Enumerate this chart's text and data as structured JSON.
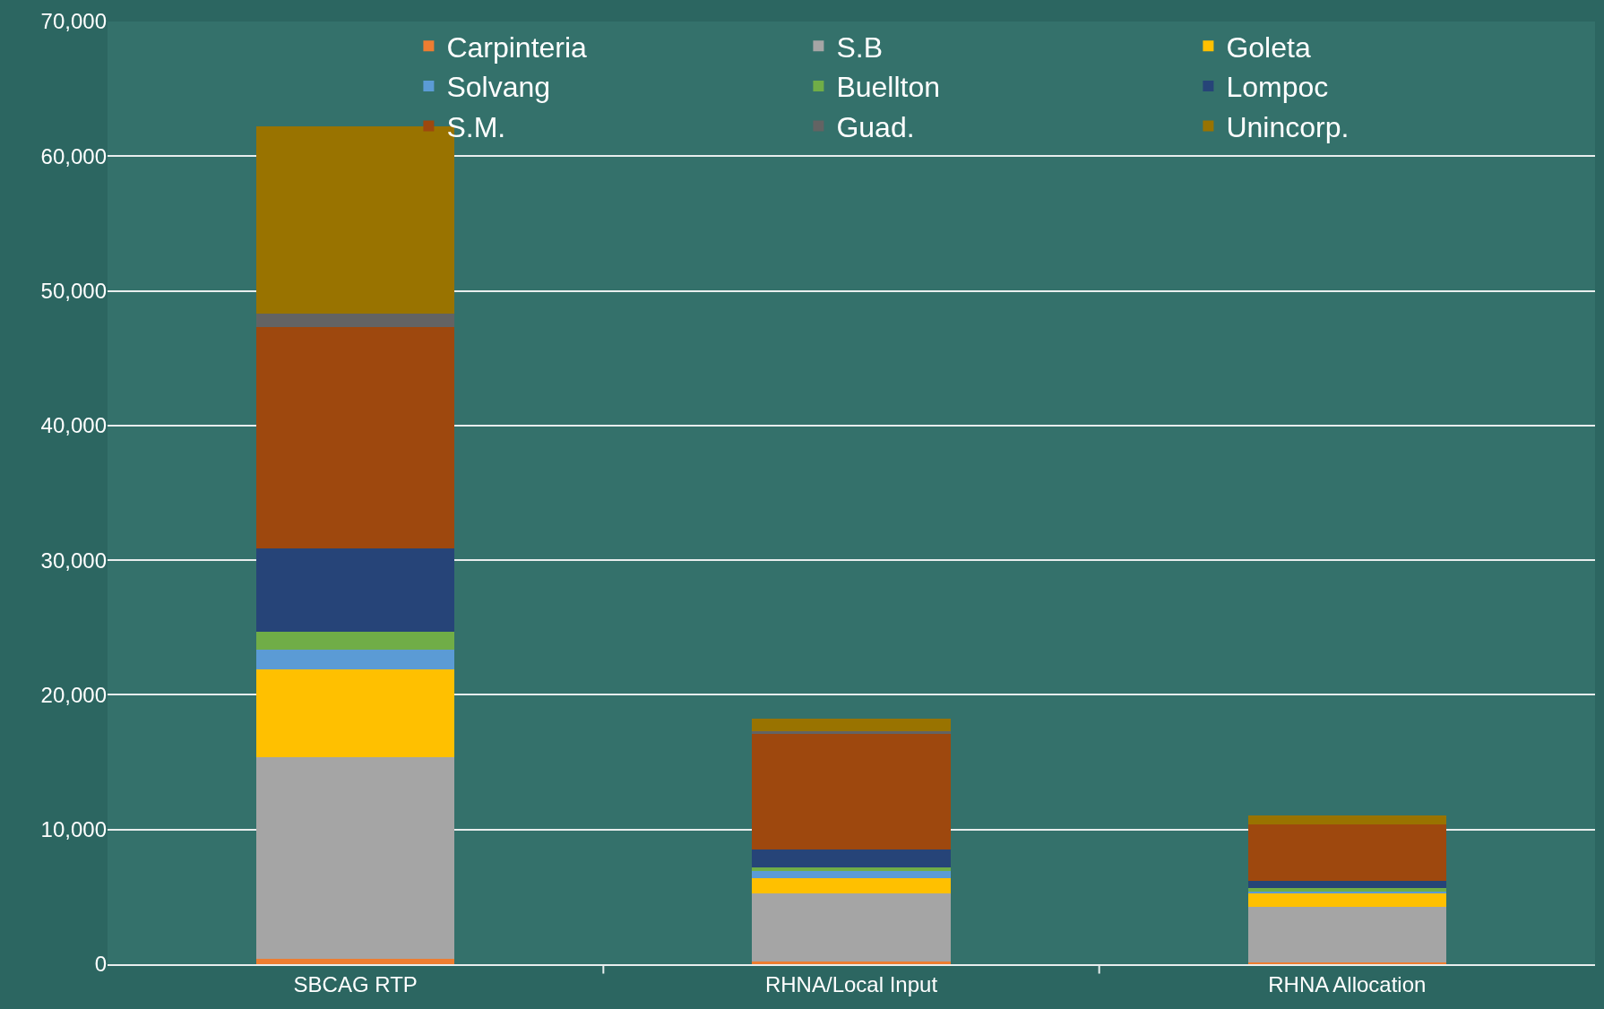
{
  "chart_data": {
    "type": "bar",
    "stacked": true,
    "categories": [
      "SBCAG RTP",
      "RHNA/Local Input",
      "RHNA Allocation"
    ],
    "series": [
      {
        "name": "Carpinteria",
        "color": "#ed7d31",
        "values": [
          400,
          180,
          160
        ]
      },
      {
        "name": "S.B",
        "color": "#a5a5a5",
        "values": [
          15000,
          5090,
          4120
        ]
      },
      {
        "name": "Goleta",
        "color": "#ffc000",
        "values": [
          6500,
          1150,
          980
        ]
      },
      {
        "name": "Solvang",
        "color": "#5b9bd5",
        "values": [
          1450,
          470,
          150
        ]
      },
      {
        "name": "Buellton",
        "color": "#70ad47",
        "values": [
          1350,
          310,
          270
        ]
      },
      {
        "name": "Lompoc",
        "color": "#264478",
        "values": [
          6150,
          1310,
          530
        ]
      },
      {
        "name": "S.M.",
        "color": "#9e480e",
        "values": [
          16450,
          8650,
          4150
        ]
      },
      {
        "name": "Guad.",
        "color": "#636363",
        "values": [
          1000,
          110,
          null
        ]
      },
      {
        "name": "Unincorp.",
        "color": "#997300",
        "values": [
          13900,
          950,
          660
        ]
      }
    ],
    "ylim": [
      0,
      70000
    ],
    "yticks": [
      {
        "value": 0,
        "label": "0"
      },
      {
        "value": 10000,
        "label": "10,000"
      },
      {
        "value": 20000,
        "label": "20,000"
      },
      {
        "value": 30000,
        "label": "30,000"
      },
      {
        "value": 40000,
        "label": "40,000"
      },
      {
        "value": 50000,
        "label": "50,000"
      },
      {
        "value": 60000,
        "label": "60,000"
      },
      {
        "value": 70000,
        "label": "70,000"
      }
    ],
    "grid": "y",
    "legend": "top right"
  }
}
